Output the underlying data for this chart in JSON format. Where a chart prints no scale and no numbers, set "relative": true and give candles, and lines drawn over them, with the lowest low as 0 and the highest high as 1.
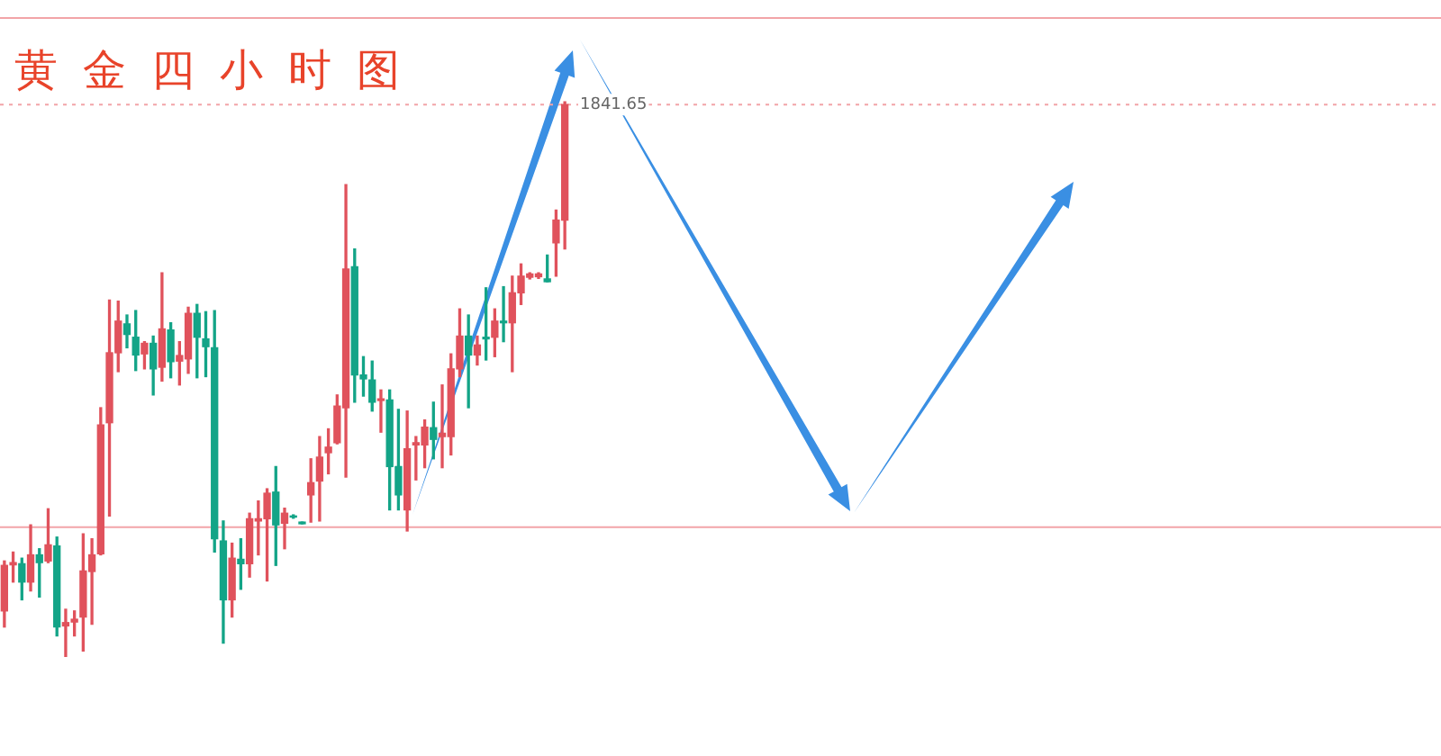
{
  "chart_data": {
    "type": "candlestick",
    "title": "黄金四小时图",
    "relative": true,
    "legend": false,
    "annotations": [
      "1841.65"
    ],
    "categories": [
      null,
      null,
      null,
      null,
      null,
      null,
      null,
      null,
      null,
      null,
      null,
      null,
      null,
      null,
      null,
      null,
      null,
      null,
      null,
      null,
      null,
      null,
      null,
      null,
      null,
      null,
      null,
      null,
      null,
      null,
      null,
      null,
      null,
      null,
      null,
      null,
      null,
      null,
      null,
      null,
      null,
      null,
      null,
      null,
      null,
      null,
      null,
      null,
      null,
      null,
      null,
      null,
      null,
      null,
      null,
      null,
      null,
      null,
      null,
      null,
      null,
      null,
      null,
      null,
      null
    ],
    "ohlc": [
      [
        0.083,
        0.173,
        0.054,
        0.165
      ],
      [
        0.166,
        0.189,
        0.135,
        0.17
      ],
      [
        0.168,
        0.178,
        0.103,
        0.135
      ],
      [
        0.135,
        0.238,
        0.119,
        0.184
      ],
      [
        0.184,
        0.195,
        0.108,
        0.17
      ],
      [
        0.173,
        0.267,
        0.17,
        0.202
      ],
      [
        0.2,
        0.216,
        0.038,
        0.054
      ],
      [
        0.056,
        0.086,
        0.0,
        0.062
      ],
      [
        0.063,
        0.083,
        0.038,
        0.068
      ],
      [
        0.072,
        0.222,
        0.011,
        0.155
      ],
      [
        0.154,
        0.213,
        0.059,
        0.184
      ],
      [
        0.186,
        0.449,
        0.184,
        0.418
      ],
      [
        0.422,
        0.643,
        0.254,
        0.548
      ],
      [
        0.548,
        0.641,
        0.514,
        0.605
      ],
      [
        0.6,
        0.616,
        0.557,
        0.581
      ],
      [
        0.576,
        0.624,
        0.516,
        0.544
      ],
      [
        0.546,
        0.568,
        0.519,
        0.565
      ],
      [
        0.565,
        0.578,
        0.472,
        0.519
      ],
      [
        0.522,
        0.692,
        0.497,
        0.591
      ],
      [
        0.589,
        0.602,
        0.503,
        0.532
      ],
      [
        0.533,
        0.568,
        0.49,
        0.543
      ],
      [
        0.537,
        0.63,
        0.511,
        0.619
      ],
      [
        0.619,
        0.635,
        0.503,
        0.576
      ],
      [
        0.573,
        0.622,
        0.505,
        0.559
      ],
      [
        0.557,
        0.624,
        0.189,
        0.213
      ],
      [
        0.209,
        0.245,
        0.025,
        0.103
      ],
      [
        0.103,
        0.205,
        0.072,
        0.178
      ],
      [
        0.176,
        0.213,
        0.122,
        0.168
      ],
      [
        0.168,
        0.259,
        0.144,
        0.249
      ],
      [
        0.245,
        0.281,
        0.184,
        0.249
      ],
      [
        0.249,
        0.303,
        0.137,
        0.295
      ],
      [
        0.297,
        0.343,
        0.165,
        0.238
      ],
      [
        0.241,
        0.268,
        0.195,
        0.259
      ],
      [
        0.254,
        0.256,
        0.25,
        0.252
      ],
      [
        0.243,
        0.243,
        0.24,
        0.24
      ],
      [
        0.292,
        0.357,
        0.243,
        0.314
      ],
      [
        0.317,
        0.397,
        0.245,
        0.36
      ],
      [
        0.368,
        0.411,
        0.33,
        0.378
      ],
      [
        0.386,
        0.472,
        0.384,
        0.452
      ],
      [
        0.449,
        0.851,
        0.324,
        0.699
      ],
      [
        0.703,
        0.735,
        0.459,
        0.508
      ],
      [
        0.508,
        0.541,
        0.47,
        0.501
      ],
      [
        0.499,
        0.533,
        0.443,
        0.459
      ],
      [
        0.462,
        0.481,
        0.405,
        0.465
      ],
      [
        0.463,
        0.481,
        0.265,
        0.343
      ],
      [
        0.343,
        0.446,
        0.265,
        0.292
      ],
      [
        0.265,
        0.443,
        0.227,
        0.375
      ],
      [
        0.382,
        0.397,
        0.319,
        0.386
      ],
      [
        0.382,
        0.427,
        0.341,
        0.414
      ],
      [
        0.413,
        0.459,
        0.357,
        0.392
      ],
      [
        0.397,
        0.49,
        0.341,
        0.403
      ],
      [
        0.397,
        0.546,
        0.364,
        0.519
      ],
      [
        0.519,
        0.627,
        0.505,
        0.578
      ],
      [
        0.578,
        0.616,
        0.449,
        0.544
      ],
      [
        0.544,
        0.578,
        0.526,
        0.562
      ],
      [
        0.576,
        0.665,
        0.535,
        0.573
      ],
      [
        0.576,
        0.627,
        0.541,
        0.605
      ],
      [
        0.605,
        0.667,
        0.568,
        0.602
      ],
      [
        0.602,
        0.686,
        0.514,
        0.656
      ],
      [
        0.656,
        0.708,
        0.635,
        0.686
      ],
      [
        0.684,
        0.692,
        0.681,
        0.69
      ],
      [
        0.685,
        0.692,
        0.682,
        0.69
      ],
      [
        0.681,
        0.724,
        0.676,
        0.676
      ],
      [
        0.746,
        0.805,
        0.686,
        0.787
      ],
      [
        0.787,
        1.0,
        0.735,
        0.995
      ]
    ],
    "colors": [
      "#e0525c",
      "#e0525c",
      "#13a487",
      "#e0525c",
      "#13a487",
      "#e0525c",
      "#13a487",
      "#e0525c",
      "#e0525c",
      "#e0525c",
      "#e0525c",
      "#e0525c",
      "#e0525c",
      "#e0525c",
      "#13a487",
      "#13a487",
      "#e0525c",
      "#13a487",
      "#e0525c",
      "#13a487",
      "#e0525c",
      "#e0525c",
      "#13a487",
      "#13a487",
      "#13a487",
      "#13a487",
      "#e0525c",
      "#13a487",
      "#e0525c",
      "#e0525c",
      "#e0525c",
      "#13a487",
      "#e0525c",
      "#13a487",
      "#13a487",
      "#e0525c",
      "#e0525c",
      "#e0525c",
      "#e0525c",
      "#e0525c",
      "#13a487",
      "#13a487",
      "#13a487",
      "#e0525c",
      "#13a487",
      "#13a487",
      "#e0525c",
      "#e0525c",
      "#e0525c",
      "#13a487",
      "#e0525c",
      "#e0525c",
      "#e0525c",
      "#13a487",
      "#e0525c",
      "#13a487",
      "#e0525c",
      "#13a487",
      "#e0525c",
      "#e0525c",
      "#e0525c",
      "#e0525c",
      "#13a487",
      "#e0525c",
      "#e0525c"
    ],
    "ref_lines": [
      {
        "axis": "y",
        "value": 0.234,
        "color": "#f2a4a8",
        "line_style": "solid"
      },
      {
        "axis": "y",
        "value": 0.995,
        "color": "#f2a4a8",
        "line_style": "dotted"
      },
      {
        "axis": "y",
        "value": 1.151,
        "color": "#f2a4a8",
        "line_style": "solid"
      }
    ]
  }
}
